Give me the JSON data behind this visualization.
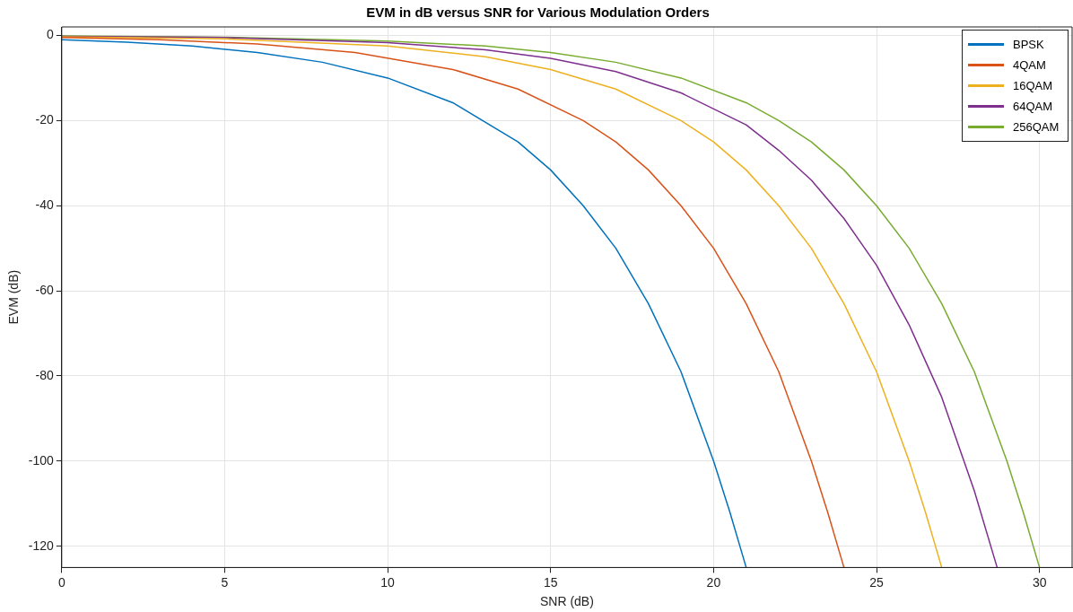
{
  "chart_data": {
    "type": "line",
    "title": "EVM in dB versus SNR for Various Modulation Orders",
    "xlabel": "SNR (dB)",
    "ylabel": "EVM (dB)",
    "xlim": [
      0,
      31
    ],
    "xticks": [
      0,
      5,
      10,
      15,
      20,
      25,
      30
    ],
    "ylim": [
      -125,
      2
    ],
    "yticks": [
      -120,
      -100,
      -80,
      -60,
      -40,
      -20,
      0
    ],
    "grid": true,
    "legend": "top right",
    "marker": "none",
    "line_style": "solid",
    "series": [
      {
        "name": "BPSK",
        "color": "#0072bd",
        "x": [
          0,
          2,
          4,
          6,
          8,
          10,
          12,
          14,
          15,
          16,
          17,
          18,
          19,
          20,
          20.5,
          21
        ],
        "values": [
          -1,
          -1.6,
          -2.5,
          -4,
          -6.3,
          -10,
          -15.8,
          -25,
          -31.6,
          -40,
          -50,
          -63,
          -79,
          -100,
          -112,
          -125
        ]
      },
      {
        "name": "4QAM",
        "color": "#d95319",
        "x": [
          0,
          3,
          6,
          9,
          12,
          14,
          16,
          17,
          18,
          19,
          20,
          21,
          22,
          23,
          23.5,
          24
        ],
        "values": [
          -0.5,
          -1,
          -2,
          -4,
          -8,
          -12.6,
          -20,
          -25,
          -31.6,
          -40,
          -50,
          -63,
          -79,
          -100,
          -112,
          -125
        ]
      },
      {
        "name": "16QAM",
        "color": "#edb120",
        "x": [
          0,
          5,
          10,
          13,
          15,
          17,
          19,
          20,
          21,
          22,
          23,
          24,
          25,
          26,
          26.5,
          27
        ],
        "values": [
          -0.3,
          -0.8,
          -2.5,
          -5,
          -8,
          -12.6,
          -20,
          -25,
          -31.6,
          -40,
          -50,
          -63,
          -79,
          -100,
          -112,
          -125
        ]
      },
      {
        "name": "64QAM",
        "color": "#7e2f8e",
        "x": [
          0,
          5,
          10,
          13,
          15,
          17,
          19,
          21,
          22,
          23,
          24,
          25,
          26,
          27,
          28,
          28.7
        ],
        "values": [
          -0.2,
          -0.5,
          -1.7,
          -3.4,
          -5.4,
          -8.5,
          -13.5,
          -21,
          -27,
          -34,
          -43,
          -54,
          -68,
          -85,
          -107,
          -125
        ]
      },
      {
        "name": "256QAM",
        "color": "#77ac30",
        "x": [
          0,
          5,
          10,
          13,
          15,
          17,
          19,
          21,
          22,
          23,
          24,
          25,
          26,
          27,
          28,
          29,
          29.5,
          30
        ],
        "values": [
          -0.1,
          -0.4,
          -1.3,
          -2.5,
          -4,
          -6.3,
          -10,
          -15.8,
          -20,
          -25,
          -31.6,
          -40,
          -50,
          -63,
          -79,
          -100,
          -112,
          -125
        ]
      }
    ]
  }
}
